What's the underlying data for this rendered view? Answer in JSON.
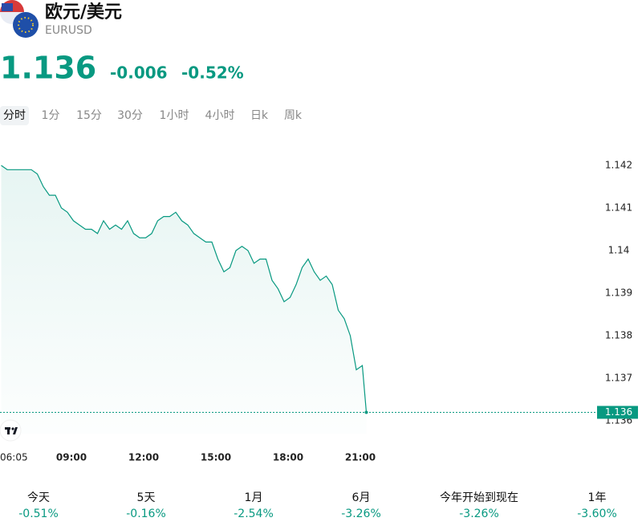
{
  "header": {
    "name": "欧元/美元",
    "code": "EURUSD",
    "price": "1.136",
    "change": "-0.006",
    "change_pct": "-0.52%"
  },
  "tabs": [
    "分时",
    "1分",
    "15分",
    "30分",
    "1小时",
    "4小时",
    "日k",
    "周k"
  ],
  "chart_data": {
    "type": "line",
    "color": "#089981",
    "x": [
      365,
      380,
      395,
      410,
      425,
      440,
      455,
      470,
      485,
      500,
      515,
      530,
      545,
      560,
      575,
      590,
      605,
      620,
      635,
      650,
      665,
      680,
      695,
      710,
      725,
      740,
      755,
      770,
      785,
      800,
      815,
      830,
      845,
      860,
      875,
      890,
      905,
      920,
      935,
      950,
      965,
      980,
      995,
      1010,
      1025,
      1040,
      1055,
      1070,
      1085,
      1100,
      1115,
      1130,
      1145,
      1160,
      1175,
      1190,
      1205,
      1220,
      1235,
      1250,
      1265,
      1275
    ],
    "values": [
      1.142,
      1.1419,
      1.1419,
      1.1419,
      1.1419,
      1.1419,
      1.1418,
      1.1415,
      1.1413,
      1.1413,
      1.141,
      1.1409,
      1.1407,
      1.1406,
      1.1405,
      1.1405,
      1.1404,
      1.1407,
      1.1405,
      1.1406,
      1.1405,
      1.1407,
      1.1404,
      1.1403,
      1.1403,
      1.1404,
      1.1407,
      1.1408,
      1.1408,
      1.1409,
      1.1407,
      1.1406,
      1.1404,
      1.1403,
      1.1402,
      1.1402,
      1.1398,
      1.1395,
      1.1396,
      1.14,
      1.1401,
      1.14,
      1.1397,
      1.1398,
      1.1398,
      1.1393,
      1.1391,
      1.1388,
      1.1389,
      1.1392,
      1.1396,
      1.1398,
      1.1395,
      1.1393,
      1.1394,
      1.1392,
      1.1386,
      1.1384,
      1.138,
      1.1372,
      1.1373,
      1.1362
    ],
    "xlim": [
      362,
      1842
    ],
    "xticks": [
      {
        "value": 365,
        "label": "06:05"
      },
      {
        "value": 540,
        "label": "09:00"
      },
      {
        "value": 720,
        "label": "12:00"
      },
      {
        "value": 900,
        "label": "15:00"
      },
      {
        "value": 1080,
        "label": "18:00"
      },
      {
        "value": 1260,
        "label": "21:00"
      }
    ],
    "ylim": [
      1.1357,
      1.1424
    ],
    "yticks": [
      1.136,
      1.137,
      1.138,
      1.139,
      1.14,
      1.141,
      1.142
    ],
    "last_price": {
      "value": 1.1362,
      "label": "1.136"
    }
  },
  "periods": [
    {
      "label": "今天",
      "value": "-0.51%"
    },
    {
      "label": "5天",
      "value": "-0.16%"
    },
    {
      "label": "1月",
      "value": "-2.54%"
    },
    {
      "label": "6月",
      "value": "-3.26%"
    },
    {
      "label": "今年开始到现在",
      "value": "-3.26%"
    },
    {
      "label": "1年",
      "value": "-3.60%"
    }
  ]
}
